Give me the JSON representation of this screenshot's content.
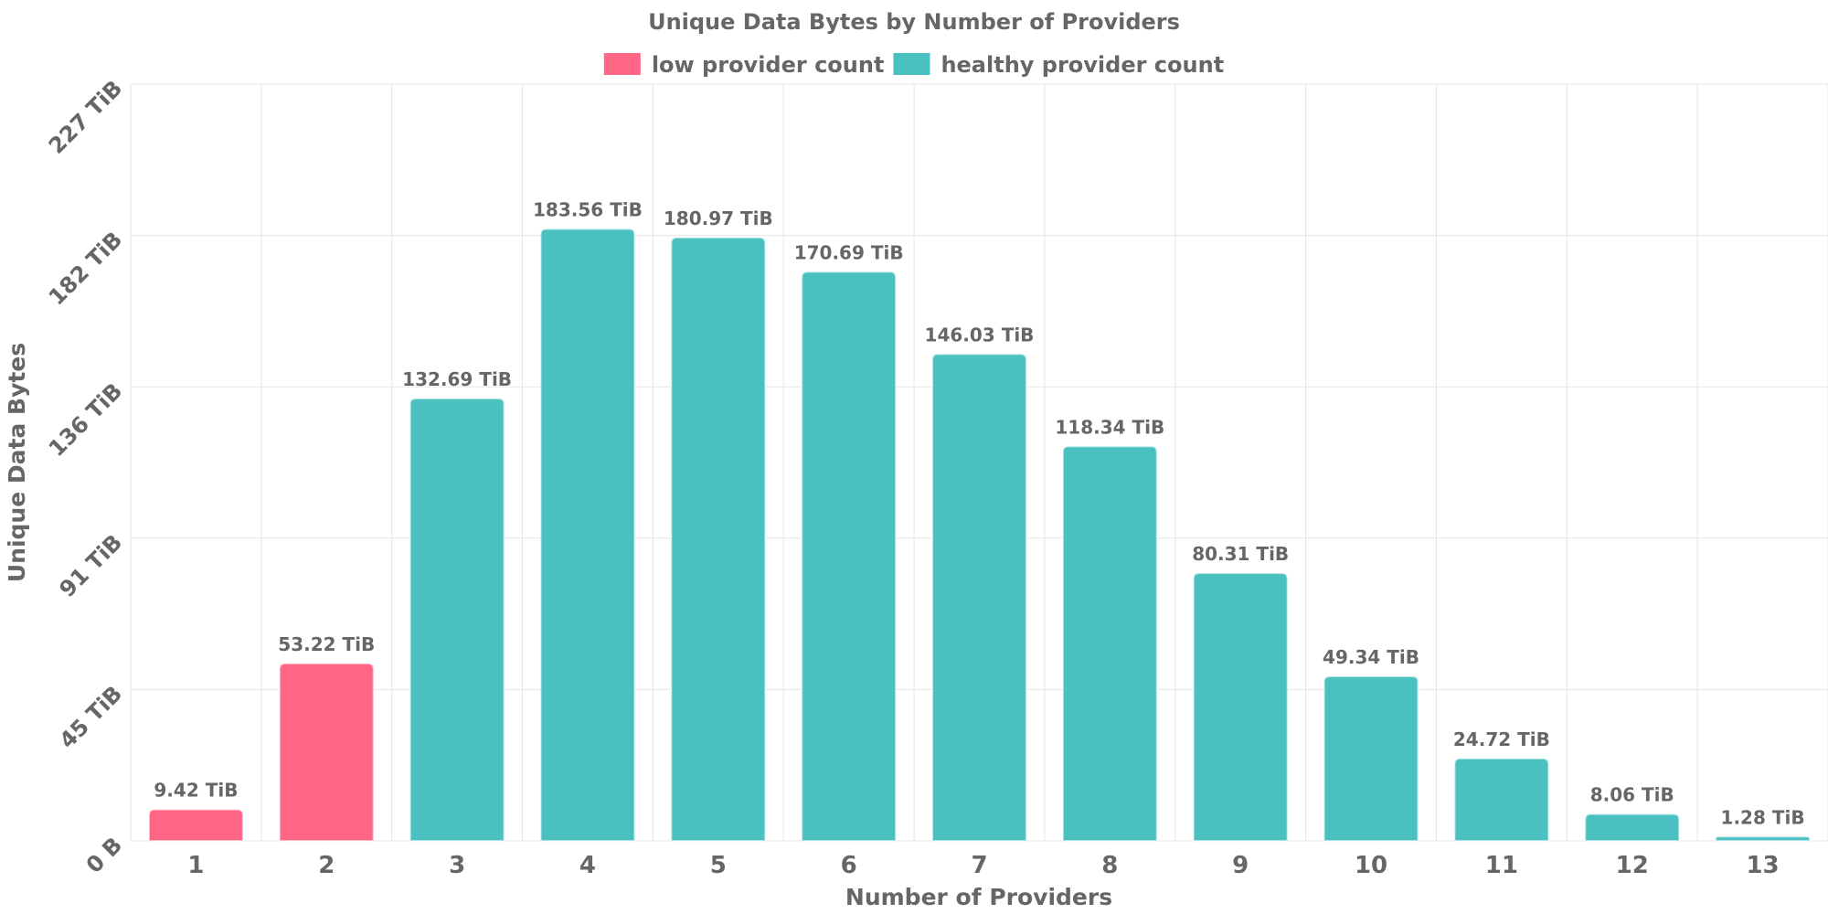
{
  "chart_data": {
    "type": "bar",
    "title": "Unique Data Bytes by Number of Providers",
    "xlabel": "Number of Providers",
    "ylabel": "Unique Data Bytes",
    "categories": [
      "1",
      "2",
      "3",
      "4",
      "5",
      "6",
      "7",
      "8",
      "9",
      "10",
      "11",
      "12",
      "13"
    ],
    "values": [
      9.42,
      53.22,
      132.69,
      183.56,
      180.97,
      170.69,
      146.03,
      118.34,
      80.31,
      49.34,
      24.72,
      8.06,
      1.28
    ],
    "value_labels": [
      "9.42 TiB",
      "53.22 TiB",
      "132.69 TiB",
      "183.56 TiB",
      "180.97 TiB",
      "170.69 TiB",
      "146.03 TiB",
      "118.34 TiB",
      "80.31 TiB",
      "49.34 TiB",
      "24.72 TiB",
      "8.06 TiB",
      "1.28 TiB"
    ],
    "value_unit": "TiB",
    "series_membership": [
      "low",
      "low",
      "healthy",
      "healthy",
      "healthy",
      "healthy",
      "healthy",
      "healthy",
      "healthy",
      "healthy",
      "healthy",
      "healthy",
      "healthy"
    ],
    "legend": [
      {
        "key": "low",
        "label": "low provider count",
        "color": "#ff6685"
      },
      {
        "key": "healthy",
        "label": "healthy provider count",
        "color": "#4bc0c0"
      }
    ],
    "legend_position": "top-center",
    "y_ticks": [
      0,
      45.4,
      90.8,
      136.2,
      181.6,
      227
    ],
    "y_tick_labels": [
      "0 B",
      "45 TiB",
      "91 TiB",
      "136 TiB",
      "182 TiB",
      "227 TiB"
    ],
    "ylim": [
      0,
      227
    ],
    "grid": true
  }
}
